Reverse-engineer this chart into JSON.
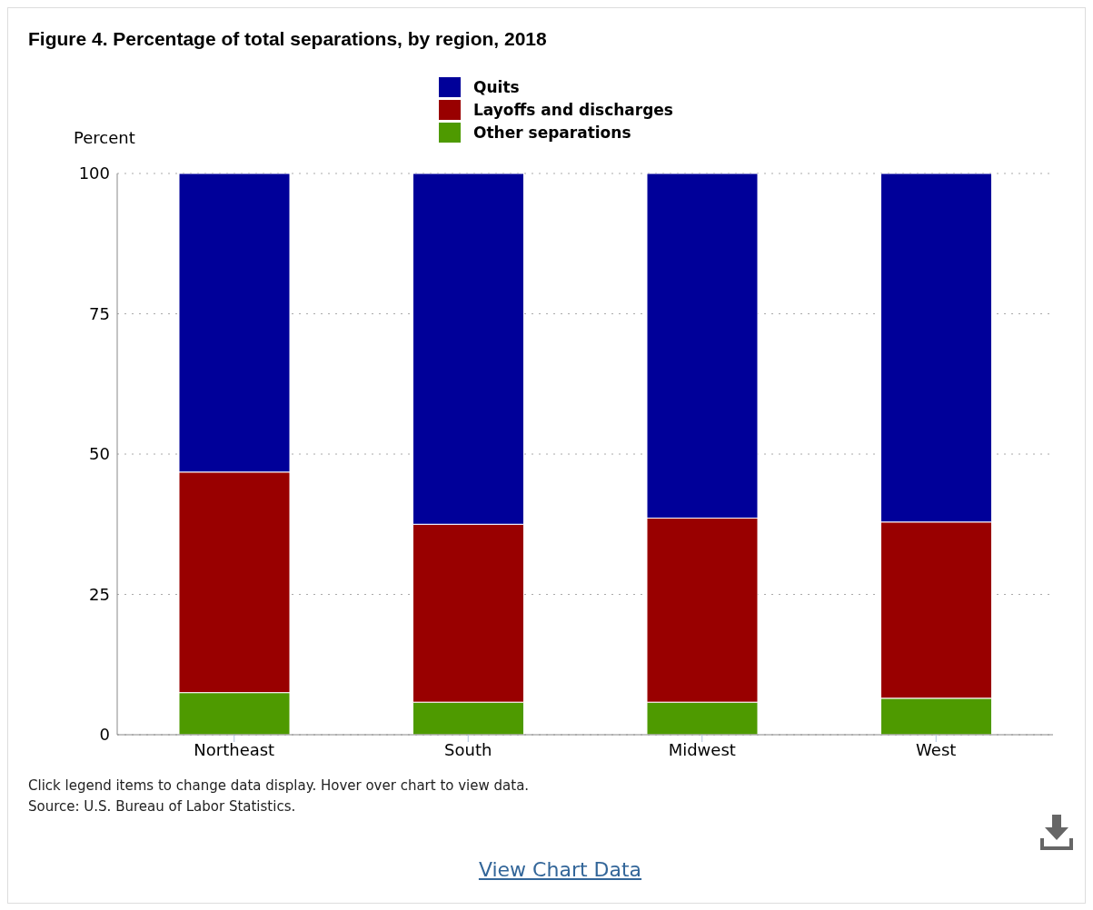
{
  "chart_data": {
    "type": "bar",
    "title": "Figure 4. Percentage of total separations, by region, 2018",
    "ylabel": "Percent",
    "categories": [
      "Northeast",
      "South",
      "Midwest",
      "West"
    ],
    "stacked": true,
    "series": [
      {
        "name": "Other separations",
        "color": "#4e9a00",
        "values": [
          7.5,
          5.8,
          5.8,
          6.5
        ]
      },
      {
        "name": "Layoffs and discharges",
        "color": "#990000",
        "values": [
          39.3,
          31.7,
          32.8,
          31.4
        ]
      },
      {
        "name": "Quits",
        "color": "#000099",
        "values": [
          53.2,
          62.5,
          61.4,
          62.1
        ]
      }
    ],
    "ylim": [
      0,
      100
    ],
    "yticks": [
      0,
      25,
      50,
      75,
      100
    ],
    "grid": "y",
    "legend": "top",
    "annotations": [
      "Click legend items to change data display. Hover over chart to view data.",
      "Source: U.S. Bureau of Labor Statistics.",
      "View Chart Data"
    ]
  }
}
